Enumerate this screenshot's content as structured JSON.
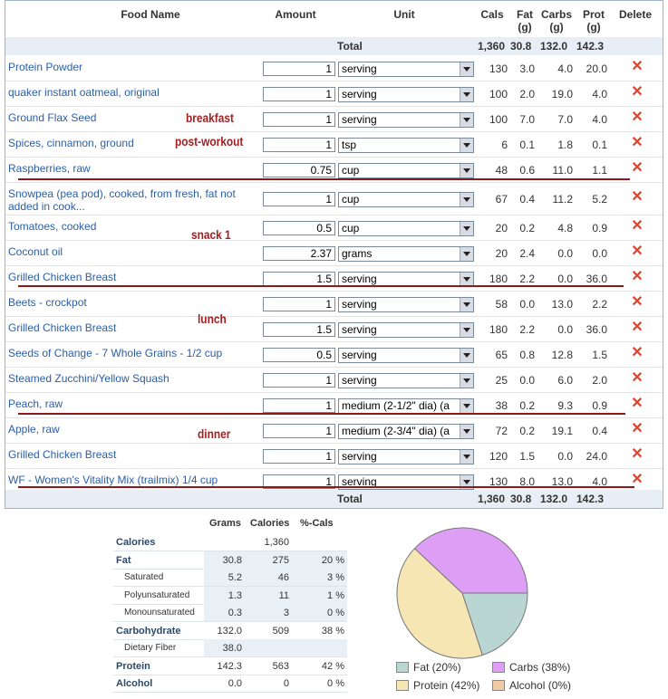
{
  "headers": {
    "food_name": "Food Name",
    "amount": "Amount",
    "unit": "Unit",
    "cals": "Cals",
    "fat": "Fat\n(g)",
    "carbs": "Carbs\n(g)",
    "prot": "Prot\n(g)",
    "delete": "Delete"
  },
  "total": {
    "label": "Total",
    "cals": "1,360",
    "fat": "30.8",
    "carbs": "132.0",
    "prot": "142.3"
  },
  "rows": [
    {
      "name": "Protein Powder",
      "amount": "1",
      "unit": "serving",
      "cals": "130",
      "fat": "3.0",
      "carbs": "4.0",
      "prot": "20.0"
    },
    {
      "name": "quaker instant oatmeal, original",
      "amount": "1",
      "unit": "serving",
      "cals": "100",
      "fat": "2.0",
      "carbs": "19.0",
      "prot": "4.0"
    },
    {
      "name": "Ground Flax Seed",
      "amount": "1",
      "unit": "serving",
      "cals": "100",
      "fat": "7.0",
      "carbs": "7.0",
      "prot": "4.0"
    },
    {
      "name": "Spices, cinnamon, ground",
      "amount": "1",
      "unit": "tsp",
      "cals": "6",
      "fat": "0.1",
      "carbs": "1.8",
      "prot": "0.1"
    },
    {
      "name": "Raspberries, raw",
      "amount": "0.75",
      "unit": "cup",
      "cals": "48",
      "fat": "0.6",
      "carbs": "11.0",
      "prot": "1.1"
    },
    {
      "name": "Snowpea (pea pod), cooked, from fresh, fat not added in cook...",
      "amount": "1",
      "unit": "cup",
      "cals": "67",
      "fat": "0.4",
      "carbs": "11.2",
      "prot": "5.2"
    },
    {
      "name": "Tomatoes, cooked",
      "amount": "0.5",
      "unit": "cup",
      "cals": "20",
      "fat": "0.2",
      "carbs": "4.8",
      "prot": "0.9"
    },
    {
      "name": "Coconut oil",
      "amount": "2.37",
      "unit": "grams",
      "cals": "20",
      "fat": "2.4",
      "carbs": "0.0",
      "prot": "0.0"
    },
    {
      "name": "Grilled Chicken Breast",
      "amount": "1.5",
      "unit": "serving",
      "cals": "180",
      "fat": "2.2",
      "carbs": "0.0",
      "prot": "36.0"
    },
    {
      "name": "Beets - crockpot",
      "amount": "1",
      "unit": "serving",
      "cals": "58",
      "fat": "0.0",
      "carbs": "13.0",
      "prot": "2.2"
    },
    {
      "name": "Grilled Chicken Breast",
      "amount": "1.5",
      "unit": "serving",
      "cals": "180",
      "fat": "2.2",
      "carbs": "0.0",
      "prot": "36.0"
    },
    {
      "name": "Seeds of Change - 7 Whole Grains - 1/2 cup",
      "amount": "0.5",
      "unit": "serving",
      "cals": "65",
      "fat": "0.8",
      "carbs": "12.8",
      "prot": "1.5"
    },
    {
      "name": "Steamed Zucchini/Yellow Squash",
      "amount": "1",
      "unit": "serving",
      "cals": "25",
      "fat": "0.0",
      "carbs": "6.0",
      "prot": "2.0"
    },
    {
      "name": "Peach, raw",
      "amount": "1",
      "unit": "medium (2-1/2\" dia) (a",
      "cals": "38",
      "fat": "0.2",
      "carbs": "9.3",
      "prot": "0.9"
    },
    {
      "name": "Apple, raw",
      "amount": "1",
      "unit": "medium (2-3/4\" dia) (a",
      "cals": "72",
      "fat": "0.2",
      "carbs": "19.1",
      "prot": "0.4"
    },
    {
      "name": "Grilled Chicken Breast",
      "amount": "1",
      "unit": "serving",
      "cals": "120",
      "fat": "1.5",
      "carbs": "0.0",
      "prot": "24.0"
    },
    {
      "name": "WF - Women's Vitality Mix (trailmix) 1/4 cup",
      "amount": "1",
      "unit": "serving",
      "cals": "130",
      "fat": "8.0",
      "carbs": "13.0",
      "prot": "4.0"
    }
  ],
  "annotations": {
    "breakfast": "breakfast",
    "post_workout": "post-workout",
    "snack1": "snack 1",
    "lunch": "lunch",
    "dinner": "dinner"
  },
  "delete_glyph": "✕",
  "nutrition": {
    "headers": {
      "grams": "Grams",
      "calories": "Calories",
      "pct": "%-Cals"
    },
    "rows": [
      {
        "label": "Calories",
        "grams": "",
        "calories": "1,360",
        "pct": ""
      },
      {
        "label": "Fat",
        "grams": "30.8",
        "calories": "275",
        "pct": "20 %"
      },
      {
        "label": "Saturated",
        "grams": "5.2",
        "calories": "46",
        "pct": "3 %"
      },
      {
        "label": "Polyunsaturated",
        "grams": "1.3",
        "calories": "11",
        "pct": "1 %"
      },
      {
        "label": "Monounsaturated",
        "grams": "0.3",
        "calories": "3",
        "pct": "0 %"
      },
      {
        "label": "Carbohydrate",
        "grams": "132.0",
        "calories": "509",
        "pct": "38 %"
      },
      {
        "label": "Dietary Fiber",
        "grams": "38.0",
        "calories": "",
        "pct": ""
      },
      {
        "label": "Protein",
        "grams": "142.3",
        "calories": "563",
        "pct": "42 %"
      },
      {
        "label": "Alcohol",
        "grams": "0.0",
        "calories": "0",
        "pct": "0 %"
      }
    ]
  },
  "chart_data": {
    "type": "pie",
    "slices": [
      {
        "label": "Fat",
        "pct": 20,
        "color": "#b9d6d3"
      },
      {
        "label": "Carbs",
        "pct": 38,
        "color": "#dd9ef5"
      },
      {
        "label": "Protein",
        "pct": 42,
        "color": "#f5e6b4"
      },
      {
        "label": "Alcohol",
        "pct": 0,
        "color": "#f2c9a5"
      }
    ],
    "legend": [
      "Fat  (20%)",
      "Carbs  (38%)",
      "Protein  (42%)",
      "Alcohol  (0%)"
    ]
  }
}
